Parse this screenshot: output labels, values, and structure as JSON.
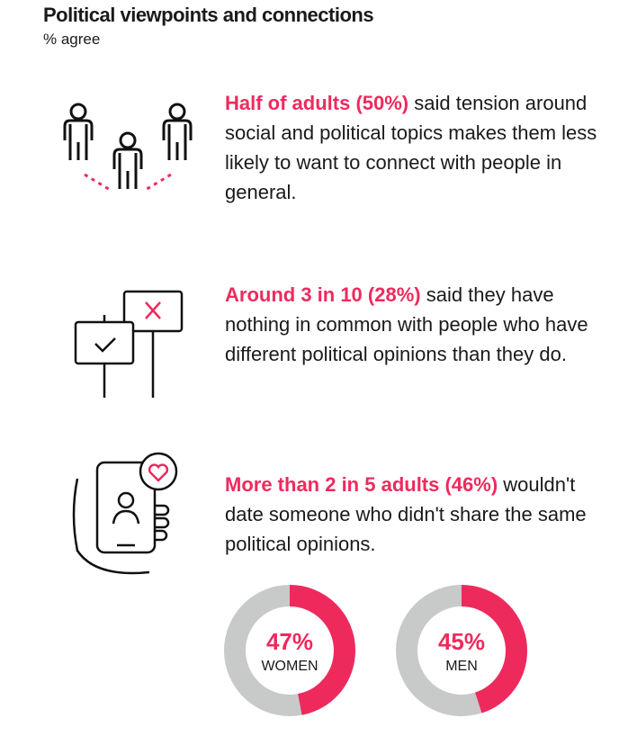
{
  "header": {
    "title": "Political viewpoints and connections",
    "subtitle": "% agree"
  },
  "stats": [
    {
      "highlight": "Half of adults (50%)",
      "text": " said tension around social and political topics makes them less likely to want to connect with people in general.",
      "icon": "people-disconnect-icon"
    },
    {
      "highlight": "Around 3 in 10 (28%)",
      "text": " said they have nothing in common with people who have different political opinions than they do.",
      "icon": "protest-signs-icon"
    },
    {
      "highlight": "More than 2 in 5 adults (46%)",
      "text": " wouldn't date someone who didn't share the same political opinions.",
      "icon": "dating-phone-icon"
    }
  ],
  "colors": {
    "accent": "#ee2a5d",
    "track": "#c8c9c9"
  },
  "chart_data": {
    "type": "pie",
    "subtype": "donut",
    "title": "Wouldn't date someone who didn't share the same political opinions",
    "categories": [
      "WOMEN",
      "MEN"
    ],
    "values": [
      47,
      45
    ],
    "labels": [
      "47%",
      "45%"
    ],
    "unit": "%"
  }
}
